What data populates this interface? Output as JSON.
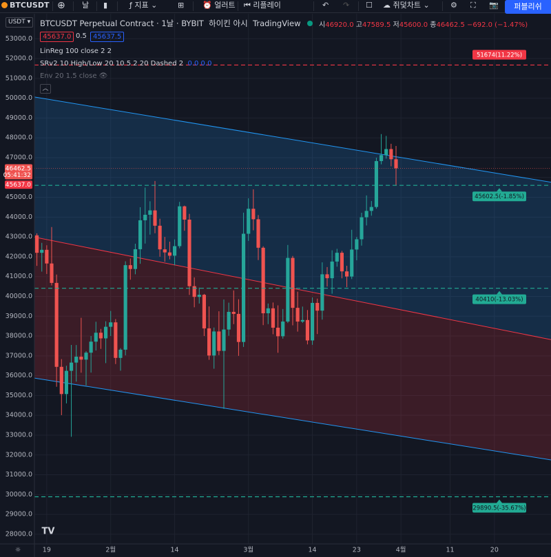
{
  "toolbar": {
    "symbol": "BTCUSDT",
    "interval": "날",
    "indicators": "지표",
    "alert": "얼러트",
    "replay": "리플레이",
    "layout": "쥐덫차트",
    "publish": "퍼블리쉬"
  },
  "currency": "USDT",
  "legend": {
    "title": "BTCUSDT Perpetual Contract · 1날 · BYBIT",
    "style": "하이킨 아시",
    "source": "TradingView",
    "ohlc": [
      {
        "label": "시",
        "value": "46920.0"
      },
      {
        "label": "고",
        "value": "47589.5"
      },
      {
        "label": "저",
        "value": "45600.0"
      },
      {
        "label": "종",
        "value": "46462.5"
      }
    ],
    "change": "−692.0 (−1.47%)",
    "sell": "45637.0",
    "spread": "0.5",
    "buy": "45637.5",
    "studies": [
      {
        "name": "LinReg 100 close 2 2"
      },
      {
        "name": "SRv2 10 High/Low 20 10 5 2 20 Dashed 2",
        "values": "0.0  0.0"
      },
      {
        "name": "Env 20 1.5 close"
      }
    ]
  },
  "chart_data": {
    "type": "candlestick",
    "categories": [
      null,
      null,
      "19",
      null,
      null,
      null,
      null,
      null,
      null,
      null,
      null,
      null,
      null,
      null,
      null,
      "2월",
      null,
      null,
      null,
      null,
      null,
      null,
      null,
      null,
      null,
      null,
      null,
      null,
      "14",
      null,
      null,
      null,
      null,
      null,
      null,
      null,
      null,
      null,
      null,
      null,
      null,
      null,
      null,
      "3월",
      null,
      null,
      null,
      null,
      null,
      null,
      null,
      null,
      null,
      null,
      null,
      null,
      "14",
      null,
      null,
      null,
      null,
      null,
      null,
      null,
      null,
      "23",
      null,
      null,
      null,
      null,
      null,
      null,
      null,
      null,
      "4월",
      null,
      null,
      null,
      null,
      null,
      null,
      null,
      null,
      null,
      "11",
      null,
      null,
      null,
      null,
      null,
      null,
      null,
      null,
      "20",
      null,
      null,
      null,
      null,
      null,
      null,
      null,
      null,
      null,
      null,
      null
    ],
    "open": [
      43079,
      42200,
      42350,
      41660,
      40680,
      36445,
      35071,
      36244,
      36660,
      36958,
      36809,
      37160,
      37716,
      38166,
      37881,
      38466,
      38690,
      36896,
      37311,
      41575,
      41382,
      42380,
      43840,
      44118,
      44339,
      43565,
      42373,
      42218,
      42053,
      42535,
      44544,
      43873,
      40515,
      39974,
      40080,
      38386,
      37017,
      38230,
      37250,
      38328,
      39219,
      39116,
      37700,
      43160,
      44421,
      43892,
      42454,
      39148,
      39397,
      38420,
      37988,
      38730,
      41941,
      39422,
      38729,
      38807,
      37777,
      39671,
      39280,
      41114,
      40917,
      41757,
      42201,
      41262,
      41002,
      42364,
      42882,
      43991,
      44313,
      44511,
      46827,
      47128,
      47433,
      46920,
      null,
      null,
      null,
      null,
      null,
      null,
      null,
      null,
      null,
      null,
      null,
      null,
      null,
      null,
      null,
      null,
      null,
      null,
      null,
      null,
      null,
      null,
      null,
      null,
      null,
      null,
      null,
      null,
      null,
      null,
      null
    ],
    "high": [
      43180,
      42700,
      42580,
      43500,
      41100,
      36835,
      36500,
      37550,
      37545,
      38920,
      37234,
      38000,
      38720,
      38359,
      38744,
      39265,
      38855,
      37387,
      41772,
      41913,
      42657,
      44500,
      45492,
      44799,
      45821,
      43920,
      43000,
      42760,
      42876,
      44769,
      44580,
      44164,
      40959,
      40444,
      40125,
      39494,
      38429,
      39249,
      39843,
      39683,
      40300,
      39855,
      44225,
      44950,
      45400,
      44102,
      42527,
      39640,
      39691,
      39547,
      39362,
      42594,
      42039,
      40236,
      39486,
      39310,
      39947,
      39887,
      41718,
      41478,
      42325,
      42400,
      42296,
      41544,
      43361,
      43000,
      44220,
      45094,
      44812,
      46999,
      48189,
      48096,
      47700,
      47589.5,
      null,
      null,
      null,
      null,
      null,
      null,
      null,
      null,
      null,
      null,
      null,
      null,
      null,
      null,
      null,
      null,
      null,
      null,
      null,
      null,
      null,
      null,
      null,
      null,
      null,
      null,
      null,
      null,
      null,
      null,
      null
    ],
    "low": [
      41540,
      41250,
      41130,
      40550,
      35440,
      34008,
      34600,
      32917,
      35700,
      36150,
      35507,
      36155,
      37268,
      37351,
      36632,
      38000,
      36586,
      36250,
      37026,
      40843,
      41116,
      41645,
      42666,
      43117,
      43188,
      42000,
      41748,
      41870,
      41570,
      42427,
      43310,
      40073,
      39450,
      39639,
      38000,
      36800,
      36350,
      37036,
      34322,
      38014,
      38600,
      37000,
      37450,
      42800,
      43334,
      41832,
      38550,
      38600,
      38088,
      37155,
      37867,
      38656,
      38539,
      38223,
      38660,
      37578,
      37555,
      38098,
      38828,
      40500,
      40135,
      41499,
      40911,
      40467,
      40875,
      41820,
      42560,
      43579,
      44071,
      44422,
      46663,
      46950,
      46565,
      45600,
      null,
      null,
      null,
      null,
      null,
      null,
      null,
      null,
      null,
      null,
      null,
      null,
      null,
      null,
      null,
      null,
      null,
      null,
      null,
      null,
      null,
      null,
      null,
      null,
      null,
      null,
      null,
      null,
      null,
      null,
      null
    ],
    "close": [
      42200,
      42350,
      41660,
      40680,
      36445,
      35071,
      36244,
      36660,
      36958,
      36809,
      37160,
      37716,
      38166,
      37881,
      38466,
      38690,
      36896,
      37311,
      41575,
      41382,
      42380,
      43840,
      44118,
      44339,
      43565,
      42373,
      42218,
      42053,
      42535,
      44544,
      43873,
      40515,
      39974,
      40080,
      38386,
      37017,
      38230,
      37250,
      38328,
      39219,
      39116,
      37700,
      43160,
      44421,
      43892,
      42454,
      39148,
      39397,
      38420,
      37988,
      38730,
      41941,
      39422,
      38729,
      38807,
      37777,
      39671,
      39280,
      41114,
      40917,
      41757,
      42201,
      41262,
      41002,
      42364,
      42882,
      43991,
      44313,
      44511,
      46827,
      47128,
      47433,
      46920,
      46462.5,
      null,
      null,
      null,
      null,
      null,
      null,
      null,
      null,
      null,
      null,
      null,
      null,
      null,
      null,
      null,
      null,
      null,
      null,
      null,
      null,
      null,
      null,
      null,
      null,
      null,
      null,
      null,
      null,
      null,
      null,
      null
    ],
    "up_color": "#26a69a",
    "down_color": "#ef5350",
    "ylim": [
      27510,
      54260
    ],
    "yticks": [
      {
        "value": 28000,
        "label": "28000.0"
      },
      {
        "value": 29000,
        "label": "29000.0"
      },
      {
        "value": 30000,
        "label": "30000.0"
      },
      {
        "value": 31000,
        "label": "31000.0"
      },
      {
        "value": 32000,
        "label": "32000.0"
      },
      {
        "value": 33000,
        "label": "33000.0"
      },
      {
        "value": 34000,
        "label": "34000.0"
      },
      {
        "value": 35000,
        "label": "35000.0"
      },
      {
        "value": 36000,
        "label": "36000.0"
      },
      {
        "value": 37000,
        "label": "37000.0"
      },
      {
        "value": 38000,
        "label": "38000.0"
      },
      {
        "value": 39000,
        "label": "39000.0"
      },
      {
        "value": 40000,
        "label": "40000.0"
      },
      {
        "value": 41000,
        "label": "41000.0"
      },
      {
        "value": 42000,
        "label": "42000.0"
      },
      {
        "value": 43000,
        "label": "43000.0"
      },
      {
        "value": 44000,
        "label": "44000.0"
      },
      {
        "value": 45000,
        "label": "45000.0"
      },
      {
        "value": 46000,
        "label": "46000.0"
      },
      {
        "value": 47000,
        "label": "47000.0"
      },
      {
        "value": 48000,
        "label": "48000.0"
      },
      {
        "value": 49000,
        "label": "49000.0"
      },
      {
        "value": 50000,
        "label": "50000.0"
      },
      {
        "value": 51000,
        "label": "51000.0"
      },
      {
        "value": 52000,
        "label": "52000.0"
      },
      {
        "value": 53000,
        "label": "53000.0"
      }
    ],
    "grid": true,
    "channel": {
      "upper": [
        50060,
        45760
      ],
      "middle": [
        42990,
        37820
      ],
      "lower": [
        35880,
        31750
      ],
      "upper_color": "#2196f3",
      "lower_color": "#f23645"
    },
    "levels": [
      {
        "value": 51674,
        "label": "51674(11.22%)",
        "color": "#f23645"
      },
      {
        "value": 45602.5,
        "label": "45602.5(-1.85%)",
        "color": "#22ab94"
      },
      {
        "value": 40410,
        "label": "40410(-13.03%)",
        "color": "#22ab94"
      },
      {
        "value": 29890.5,
        "label": "29890.5(-35.67%)",
        "color": "#22ab94"
      }
    ],
    "last_price": {
      "value": 46462.5,
      "label": "46462.5",
      "countdown": "05:41:32"
    },
    "bid": {
      "value": 45637,
      "label": "45637.0"
    }
  }
}
